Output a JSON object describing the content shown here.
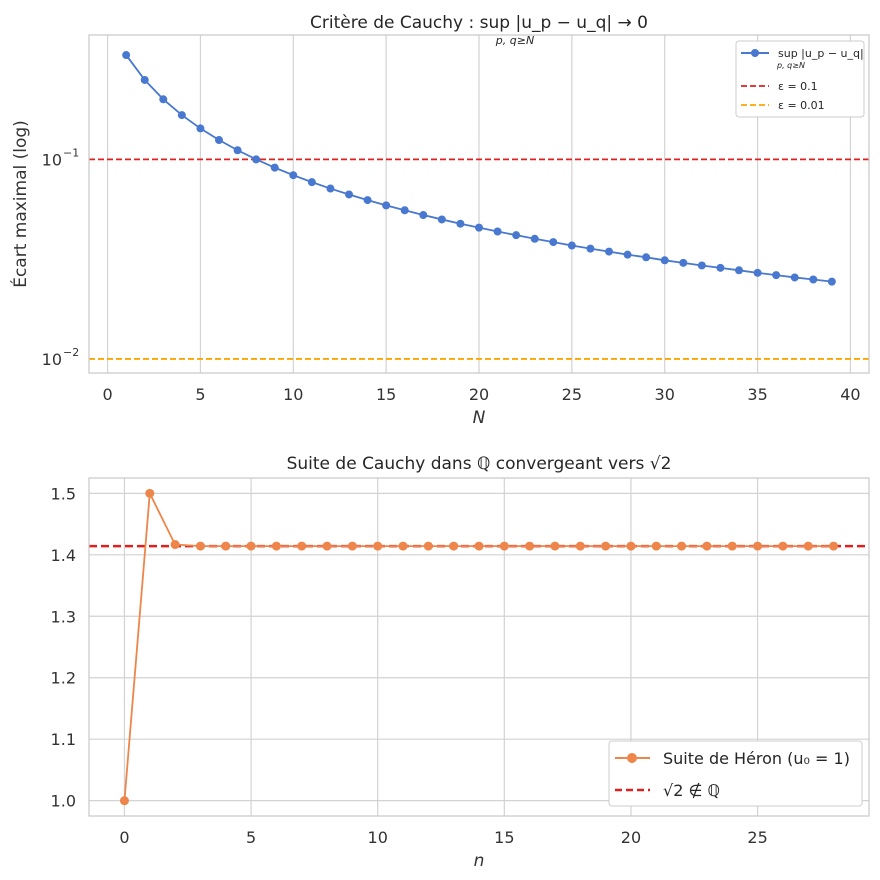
{
  "chart_data": [
    {
      "type": "line",
      "title": "Critère de Cauchy :  sup |u_p − u_q| → 0",
      "title_subscript": "p, q≥N",
      "xlabel": "N",
      "ylabel": "Écart maximal (log)",
      "yscale": "log",
      "xlim": [
        -1,
        41
      ],
      "ylim": [
        0.0085,
        0.42
      ],
      "xticks": [
        0,
        5,
        10,
        15,
        20,
        25,
        30,
        35,
        40
      ],
      "yticks": [
        {
          "value": 0.1,
          "label": "10",
          "exp": "−1"
        },
        {
          "value": 0.01,
          "label": "10",
          "exp": "−2"
        }
      ],
      "grid": "x",
      "legend_position": "top-right",
      "series": [
        {
          "name": "sup |u_p − u_q|",
          "name_subscript": "p, q≥N",
          "color": "#4878cf",
          "marker": "circle",
          "x": [
            1,
            2,
            3,
            4,
            5,
            6,
            7,
            8,
            9,
            10,
            11,
            12,
            13,
            14,
            15,
            16,
            17,
            18,
            19,
            20,
            21,
            22,
            23,
            24,
            25,
            26,
            27,
            28,
            29,
            30,
            31,
            32,
            33,
            34,
            35,
            36,
            37,
            38,
            39
          ],
          "values": [
            0.3333,
            0.25,
            0.2,
            0.1667,
            0.1429,
            0.125,
            0.1111,
            0.1,
            0.0909,
            0.0833,
            0.0769,
            0.0714,
            0.0667,
            0.0625,
            0.0588,
            0.0556,
            0.0526,
            0.05,
            0.0476,
            0.0455,
            0.0435,
            0.0417,
            0.04,
            0.0385,
            0.037,
            0.0357,
            0.0345,
            0.0333,
            0.0323,
            0.0312,
            0.0303,
            0.0294,
            0.0286,
            0.0278,
            0.027,
            0.0263,
            0.0256,
            0.025,
            0.0244
          ]
        }
      ],
      "hlines": [
        {
          "name": "ε = 0.1",
          "value": 0.1,
          "color": "#e0201e",
          "style": "dashed"
        },
        {
          "name": "ε = 0.01",
          "value": 0.01,
          "color": "#ffa500",
          "style": "dashed"
        }
      ]
    },
    {
      "type": "line",
      "title": "Suite de Cauchy dans ℚ convergeant vers √2",
      "xlabel": "n",
      "ylabel": "",
      "xlim": [
        -1.4,
        29.4
      ],
      "ylim": [
        0.975,
        1.525
      ],
      "xticks": [
        0,
        5,
        10,
        15,
        20,
        25
      ],
      "yticks": [
        1.0,
        1.1,
        1.2,
        1.3,
        1.4,
        1.5
      ],
      "yticklabels": [
        "1.0",
        "1.1",
        "1.2",
        "1.3",
        "1.4",
        "1.5"
      ],
      "grid": "both",
      "legend_position": "bottom-right",
      "series": [
        {
          "name": "Suite de Héron (u₀ = 1)",
          "color": "#ee854a",
          "marker": "circle",
          "x": [
            0,
            1,
            2,
            3,
            4,
            5,
            6,
            7,
            8,
            9,
            10,
            11,
            12,
            13,
            14,
            15,
            16,
            17,
            18,
            19,
            20,
            21,
            22,
            23,
            24,
            25,
            26,
            27,
            28
          ],
          "values": [
            1.0,
            1.5,
            1.4167,
            1.4142,
            1.4142,
            1.4142,
            1.4142,
            1.4142,
            1.4142,
            1.4142,
            1.4142,
            1.4142,
            1.4142,
            1.4142,
            1.4142,
            1.4142,
            1.4142,
            1.4142,
            1.4142,
            1.4142,
            1.4142,
            1.4142,
            1.4142,
            1.4142,
            1.4142,
            1.4142,
            1.4142,
            1.4142,
            1.4142
          ]
        }
      ],
      "hlines": [
        {
          "name": "√2 ∉ ℚ",
          "value": 1.41421356,
          "color": "#e0201e",
          "style": "dashed"
        }
      ]
    }
  ]
}
